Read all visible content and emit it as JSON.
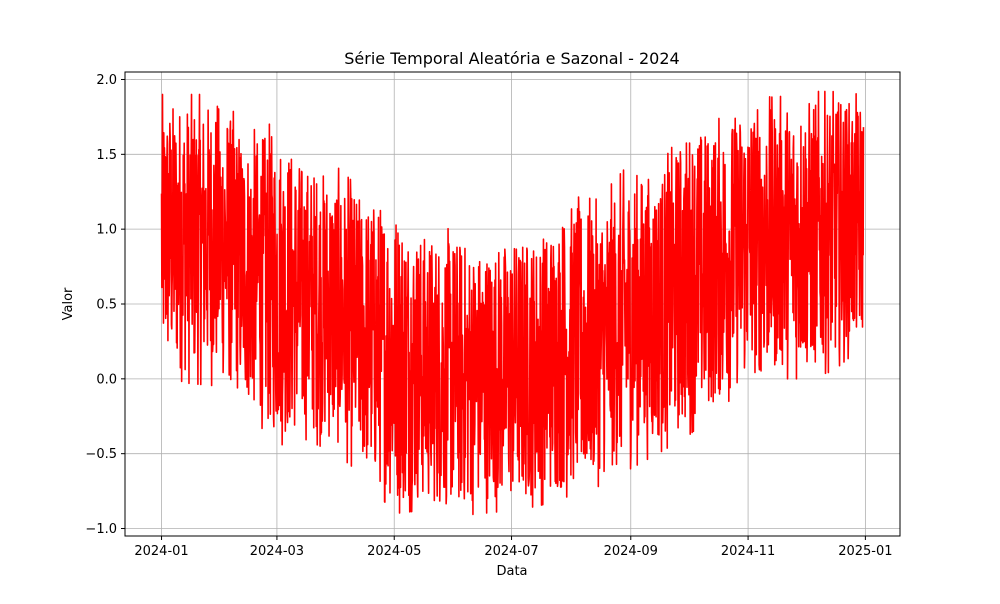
{
  "chart_data": {
    "type": "line",
    "title": "Série Temporal Aleatória e Sazonal - 2024",
    "xlabel": "Data",
    "ylabel": "Valor",
    "x_ticks": [
      "2024-01",
      "2024-03",
      "2024-05",
      "2024-07",
      "2024-09",
      "2024-11",
      "2025-01"
    ],
    "x_tick_dates": [
      "2024-01-01",
      "2024-03-01",
      "2024-05-01",
      "2024-07-01",
      "2024-09-01",
      "2024-11-01",
      "2025-01-01"
    ],
    "y_ticks": [
      "−1.0",
      "−0.5",
      "0.0",
      "0.5",
      "1.0",
      "1.5",
      "2.0"
    ],
    "y_tick_values": [
      -1.0,
      -0.5,
      0.0,
      0.5,
      1.0,
      1.5,
      2.0
    ],
    "xlim": [
      "2023-12-13",
      "2025-01-19"
    ],
    "ylim": [
      -1.05,
      2.05
    ],
    "grid": true,
    "line_color": "#ff0000",
    "series": [
      {
        "x_start": "2024-01-01",
        "x_end": "2024-12-31",
        "envelope": [
          {
            "date": "2024-01-01",
            "min": 0.02,
            "max": 1.9
          },
          {
            "date": "2024-01-15",
            "min": -0.03,
            "max": 1.9
          },
          {
            "date": "2024-02-01",
            "min": -0.05,
            "max": 1.9
          },
          {
            "date": "2024-02-15",
            "min": -0.22,
            "max": 1.65
          },
          {
            "date": "2024-03-01",
            "min": -0.45,
            "max": 1.72
          },
          {
            "date": "2024-03-15",
            "min": -0.4,
            "max": 1.48
          },
          {
            "date": "2024-04-01",
            "min": -0.5,
            "max": 1.42
          },
          {
            "date": "2024-04-15",
            "min": -0.65,
            "max": 1.25
          },
          {
            "date": "2024-05-01",
            "min": -0.9,
            "max": 1.22
          },
          {
            "date": "2024-05-15",
            "min": -0.88,
            "max": 1.02
          },
          {
            "date": "2024-06-01",
            "min": -0.92,
            "max": 1.0
          },
          {
            "date": "2024-06-15",
            "min": -0.9,
            "max": 0.92
          },
          {
            "date": "2024-07-01",
            "min": -0.88,
            "max": 0.98
          },
          {
            "date": "2024-07-15",
            "min": -0.85,
            "max": 1.0
          },
          {
            "date": "2024-08-01",
            "min": -0.78,
            "max": 1.22
          },
          {
            "date": "2024-08-15",
            "min": -0.72,
            "max": 1.2
          },
          {
            "date": "2024-09-01",
            "min": -0.6,
            "max": 1.45
          },
          {
            "date": "2024-09-15",
            "min": -0.5,
            "max": 1.4
          },
          {
            "date": "2024-10-01",
            "min": -0.38,
            "max": 1.72
          },
          {
            "date": "2024-10-15",
            "min": -0.22,
            "max": 1.72
          },
          {
            "date": "2024-11-01",
            "min": -0.05,
            "max": 1.9
          },
          {
            "date": "2024-11-15",
            "min": 0.0,
            "max": 1.88
          },
          {
            "date": "2024-12-01",
            "min": 0.0,
            "max": 1.92
          },
          {
            "date": "2024-12-15",
            "min": 0.05,
            "max": 1.92
          },
          {
            "date": "2024-12-31",
            "min": 0.22,
            "max": 1.9
          }
        ]
      }
    ]
  }
}
